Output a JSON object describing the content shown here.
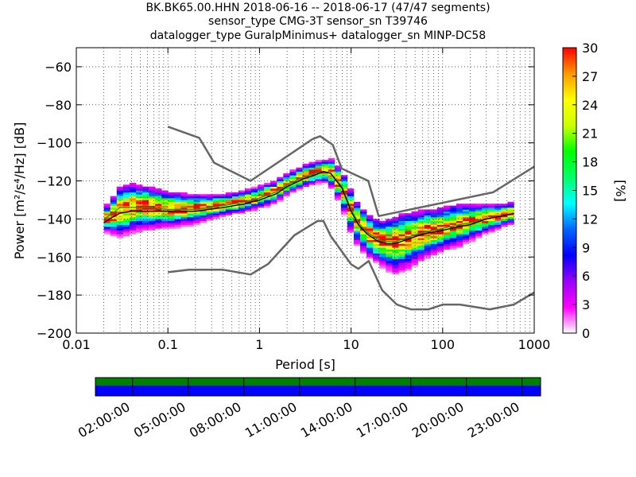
{
  "title_lines": [
    "BK.BK65.00.HHN   2018-06-16 -- 2018-06-17  (47/47 segments)",
    "sensor_type CMG-3T sensor_sn T39746",
    "datalogger_type GuralpMinimus+ datalogger_sn MINP-DC58"
  ],
  "chart_data": {
    "type": "heatmap",
    "xlabel": "Period [s]",
    "ylabel": "Power [m²/s⁴/Hz] [dB]",
    "xscale": "log",
    "xlim": [
      0.01,
      1000
    ],
    "ylim": [
      -200,
      -50
    ],
    "x_ticks": [
      0.01,
      0.1,
      1,
      10,
      100,
      1000
    ],
    "x_tick_labels": [
      "0.01",
      "0.1",
      "1",
      "10",
      "100",
      "1000"
    ],
    "y_ticks": [
      -200,
      -180,
      -160,
      -140,
      -120,
      -100,
      -80,
      -60
    ],
    "y_tick_labels": [
      "−200",
      "−180",
      "−160",
      "−140",
      "−120",
      "−100",
      "−80",
      "−60"
    ],
    "grid": true,
    "colorbar": {
      "label": "[%]",
      "range": [
        0,
        30
      ],
      "ticks": [
        0,
        3,
        6,
        9,
        12,
        15,
        18,
        21,
        24,
        27,
        30
      ],
      "colors": [
        "#ffffff",
        "#ff00ff",
        "#9900ff",
        "#0000ff",
        "#0066ff",
        "#00ffff",
        "#00ff66",
        "#00ff00",
        "#ccff00",
        "#ffff00",
        "#ff9900",
        "#ff0000"
      ]
    },
    "noise_model_high": {
      "name": "NHNM",
      "x": [
        0.1,
        0.22,
        0.32,
        0.8,
        3.8,
        4.6,
        6.3,
        7.9,
        15.4,
        20,
        354.8,
        1000
      ],
      "y": [
        -91.5,
        -97.4,
        -110.5,
        -120,
        -98,
        -96.5,
        -101,
        -113.5,
        -120,
        -138.5,
        -126,
        -112.5
      ]
    },
    "noise_model_low": {
      "name": "NLNM",
      "x": [
        0.1,
        0.17,
        0.4,
        0.8,
        1.24,
        2.4,
        4.3,
        5,
        6,
        10,
        12,
        15.6,
        21.9,
        31.6,
        45,
        70,
        101,
        154,
        328,
        600,
        1000
      ],
      "y": [
        -168,
        -166.7,
        -166.7,
        -169.2,
        -163.7,
        -148.6,
        -141.1,
        -141.1,
        -149,
        -163.8,
        -166.2,
        -162.1,
        -177.5,
        -185,
        -187.5,
        -187.5,
        -185,
        -185,
        -187.5,
        -185,
        -178.6
      ]
    },
    "mode_curve": {
      "name": "mode",
      "x": [
        0.02,
        0.025,
        0.03,
        0.04,
        0.06,
        0.1,
        0.2,
        0.4,
        0.7,
        1,
        1.5,
        2,
        3,
        4,
        5,
        6,
        8,
        10,
        12,
        15,
        20,
        25,
        30,
        40,
        60,
        100,
        150,
        200,
        300,
        500,
        600
      ],
      "y": [
        -142,
        -139,
        -137,
        -136,
        -136,
        -136,
        -136,
        -134,
        -132,
        -130,
        -127,
        -123,
        -119,
        -117,
        -115,
        -116,
        -124,
        -136,
        -143,
        -148,
        -152,
        -153,
        -153,
        -151,
        -148,
        -146,
        -144,
        -143,
        -140,
        -138,
        -137
      ]
    },
    "mean_curve": {
      "name": "mean",
      "x": [
        0.02,
        0.025,
        0.03,
        0.04,
        0.06,
        0.1,
        0.2,
        0.4,
        0.7,
        1,
        1.5,
        2,
        3,
        4,
        5,
        6,
        8,
        10,
        12,
        15,
        20,
        25,
        30,
        40,
        60,
        100,
        150,
        200,
        300,
        500,
        600
      ],
      "y": [
        -140,
        -137,
        -134,
        -134,
        -134,
        -135,
        -135,
        -133,
        -131,
        -129,
        -126,
        -122,
        -118,
        -116,
        -115,
        -116,
        -123,
        -135,
        -142,
        -147,
        -151,
        -152,
        -152,
        -150,
        -147,
        -145,
        -143,
        -142,
        -140,
        -138,
        -137
      ]
    },
    "psd_distribution_median": {
      "x": [
        0.02,
        0.03,
        0.04,
        0.06,
        0.1,
        0.2,
        0.4,
        0.7,
        1,
        1.5,
        2,
        3,
        4,
        5,
        6,
        8,
        10,
        12,
        15,
        20,
        25,
        30,
        40,
        60,
        100,
        150,
        200,
        300,
        500,
        600
      ],
      "y": [
        -141,
        -136,
        -134,
        -134,
        -135,
        -135,
        -133,
        -131,
        -129,
        -126,
        -122,
        -118,
        -116,
        -115,
        -116,
        -124,
        -136,
        -143,
        -148,
        -152,
        -153,
        -153,
        -151,
        -148,
        -145,
        -143,
        -142,
        -140,
        -138,
        -137
      ],
      "spread_db": [
        3,
        7,
        7,
        6,
        5,
        4,
        3,
        3,
        3,
        3,
        3,
        3,
        3,
        3,
        4,
        5,
        6,
        6,
        6,
        6,
        7,
        8,
        8,
        7,
        6,
        6,
        5,
        4,
        3,
        3
      ]
    }
  },
  "timeline": {
    "tick_labels": [
      "02:00:00",
      "05:00:00",
      "08:00:00",
      "11:00:00",
      "14:00:00",
      "17:00:00",
      "20:00:00",
      "23:00:00"
    ],
    "bar_top_color": "#008000",
    "bar_bottom_color": "#0000ff"
  }
}
